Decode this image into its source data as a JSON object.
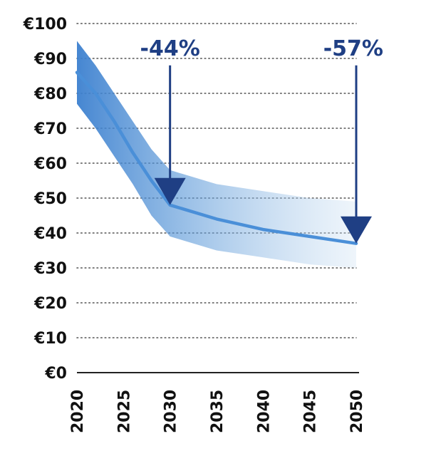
{
  "chart_data": {
    "type": "line",
    "title": "",
    "xlabel": "",
    "ylabel": "",
    "x": [
      2020,
      2025,
      2030,
      2035,
      2040,
      2045,
      2050
    ],
    "xlim": [
      2020,
      2050
    ],
    "ylim": [
      0,
      100
    ],
    "y_ticks": [
      "€0",
      "€10",
      "€20",
      "€30",
      "€40",
      "€50",
      "€60",
      "€70",
      "€80",
      "€90",
      "€100"
    ],
    "x_ticks": [
      "2020",
      "2025",
      "2030",
      "2035",
      "2040",
      "2045",
      "2050"
    ],
    "grid": "horizontal dotted",
    "series": [
      {
        "name": "",
        "x": [
          2020,
          2022,
          2024,
          2026,
          2028,
          2030,
          2035,
          2040,
          2045,
          2050
        ],
        "y": [
          86,
          80,
          72,
          63,
          55,
          48,
          44,
          41,
          39,
          37
        ]
      }
    ],
    "band": {
      "x": [
        2020,
        2022,
        2024,
        2026,
        2028,
        2030,
        2035,
        2040,
        2045,
        2050
      ],
      "upper": [
        95,
        88,
        80,
        72,
        64,
        58,
        54,
        52,
        50,
        49
      ],
      "lower": [
        77,
        70,
        62,
        54,
        45,
        39,
        35,
        33,
        31,
        30
      ]
    },
    "annotations": [
      {
        "text": "-44%",
        "x": 2030,
        "y_top": 88,
        "y_bottom": 48
      },
      {
        "text": "-57%",
        "x": 2050,
        "y_top": 88,
        "y_bottom": 37
      }
    ],
    "colors": {
      "band": "#3c80cf",
      "line": "#4a8fd8",
      "annotation": "#1f3f84",
      "axis": "#222222",
      "grid": "#555555"
    }
  }
}
